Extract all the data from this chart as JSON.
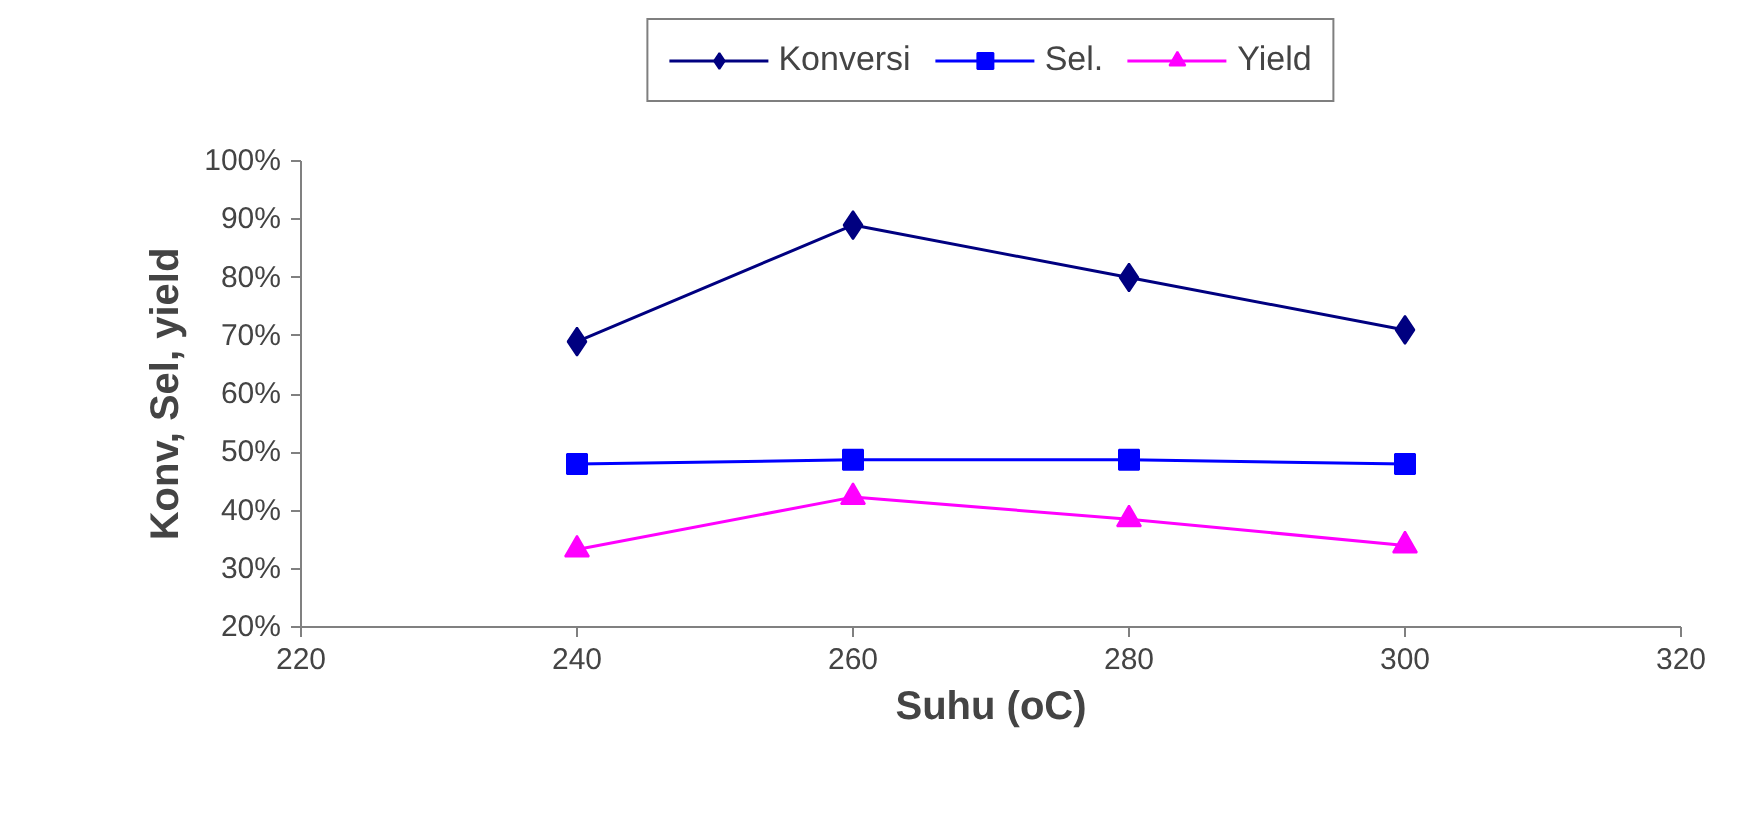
{
  "chart_data": {
    "type": "line",
    "xlabel": "Suhu (oC)",
    "ylabel": "Konv, Sel, yield",
    "x": [
      240,
      260,
      280,
      300
    ],
    "series": [
      {
        "name": "Konversi",
        "color": "#000080",
        "marker": "diamond",
        "values": [
          69,
          89,
          80,
          71
        ]
      },
      {
        "name": "Sel.",
        "color": "#0000ff",
        "marker": "square",
        "values": [
          48,
          48.7,
          48.7,
          48
        ]
      },
      {
        "name": "Yield",
        "color": "#ff00ff",
        "marker": "triangle",
        "values": [
          33.3,
          42.3,
          38.5,
          34
        ]
      }
    ],
    "xlim": [
      220,
      320
    ],
    "xticks": [
      220,
      240,
      260,
      280,
      300,
      320
    ],
    "ylim": [
      20,
      100
    ],
    "yticks": [
      {
        "value": 20,
        "label": "20%"
      },
      {
        "value": 30,
        "label": "30%"
      },
      {
        "value": 40,
        "label": "40%"
      },
      {
        "value": 50,
        "label": "50%"
      },
      {
        "value": 60,
        "label": "60%"
      },
      {
        "value": 70,
        "label": "70%"
      },
      {
        "value": 80,
        "label": "80%"
      },
      {
        "value": 90,
        "label": "90%"
      },
      {
        "value": 100,
        "label": "100%"
      }
    ],
    "grid": false,
    "legend": "top",
    "line_style": "solid"
  }
}
